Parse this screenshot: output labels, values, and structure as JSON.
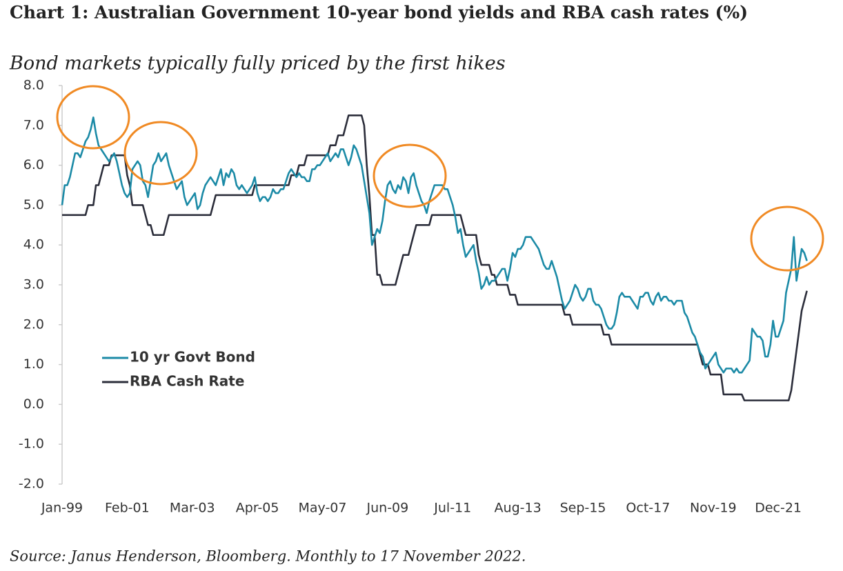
{
  "chart_data": {
    "type": "line",
    "title": "Chart 1: Australian Government 10-year bond yields and RBA cash rates (%)",
    "subtitle": "Bond markets typically fully priced by the first hikes",
    "source": "Source: Janus Henderson, Bloomberg. Monthly to 17 November 2022.",
    "categories": [
      "Jan-99",
      null,
      null,
      null,
      null,
      null,
      null,
      null,
      null,
      null,
      null,
      null,
      null,
      null,
      null,
      null,
      null,
      null,
      null,
      null,
      null,
      null,
      null,
      null,
      null,
      "Feb-01",
      null,
      null,
      null,
      null,
      null,
      null,
      null,
      null,
      null,
      null,
      null,
      null,
      null,
      null,
      null,
      null,
      null,
      null,
      null,
      null,
      null,
      null,
      null,
      null,
      "Mar-03",
      null,
      null,
      null,
      null,
      null,
      null,
      null,
      null,
      null,
      null,
      null,
      null,
      null,
      null,
      null,
      null,
      null,
      null,
      null,
      null,
      null,
      null,
      null,
      null,
      "Apr-05",
      null,
      null,
      null,
      null,
      null,
      null,
      null,
      null,
      null,
      null,
      null,
      null,
      null,
      null,
      null,
      null,
      null,
      null,
      null,
      null,
      null,
      null,
      null,
      null,
      "May-07",
      null,
      null,
      null,
      null,
      null,
      null,
      null,
      null,
      null,
      null,
      null,
      null,
      null,
      null,
      null,
      null,
      null,
      null,
      null,
      null,
      null,
      null,
      null,
      null,
      "Jun-09",
      null,
      null,
      null,
      null,
      null,
      null,
      null,
      null,
      null,
      null,
      null,
      null,
      null,
      null,
      null,
      null,
      null,
      null,
      null,
      null,
      null,
      null,
      null,
      null,
      "Jul-11",
      null,
      null,
      null,
      null,
      null,
      null,
      null,
      null,
      null,
      null,
      null,
      null,
      null,
      null,
      null,
      null,
      null,
      null,
      null,
      null,
      null,
      null,
      null,
      null,
      "Aug-13",
      null,
      null,
      null,
      null,
      null,
      null,
      null,
      null,
      null,
      null,
      null,
      null,
      null,
      null,
      null,
      null,
      null,
      null,
      null,
      null,
      null,
      null,
      null,
      null,
      "Sep-15",
      null,
      null,
      null,
      null,
      null,
      null,
      null,
      null,
      null,
      null,
      null,
      null,
      null,
      null,
      null,
      null,
      null,
      null,
      null,
      null,
      null,
      null,
      null,
      null,
      "Oct-17",
      null,
      null,
      null,
      null,
      null,
      null,
      null,
      null,
      null,
      null,
      null,
      null,
      null,
      null,
      null,
      null,
      null,
      null,
      null,
      null,
      null,
      null,
      null,
      null,
      "Nov-19",
      null,
      null,
      null,
      null,
      null,
      null,
      null,
      null,
      null,
      null,
      null,
      null,
      null,
      null,
      null,
      null,
      null,
      null,
      null,
      null,
      null,
      null,
      null,
      null,
      "Dec-21",
      null,
      null,
      null,
      null,
      null,
      null,
      null,
      null,
      null,
      null,
      null
    ],
    "series": [
      {
        "name": "10 yr Govt Bond",
        "color": "#1b8aa6",
        "values": [
          5.0,
          5.5,
          5.5,
          5.7,
          6.0,
          6.3,
          6.3,
          6.2,
          6.4,
          6.6,
          6.7,
          6.9,
          7.2,
          6.8,
          6.5,
          6.4,
          6.3,
          6.2,
          6.1,
          6.2,
          6.3,
          6.1,
          5.8,
          5.5,
          5.3,
          5.2,
          5.3,
          5.9,
          6.0,
          6.1,
          6.0,
          5.6,
          5.5,
          5.2,
          5.6,
          6.0,
          6.1,
          6.3,
          6.1,
          6.2,
          6.3,
          6.0,
          5.8,
          5.6,
          5.4,
          5.5,
          5.6,
          5.2,
          5.0,
          5.1,
          5.2,
          5.3,
          4.9,
          5.0,
          5.3,
          5.5,
          5.6,
          5.7,
          5.6,
          5.5,
          5.7,
          5.9,
          5.5,
          5.8,
          5.7,
          5.9,
          5.8,
          5.5,
          5.4,
          5.5,
          5.4,
          5.3,
          5.4,
          5.5,
          5.7,
          5.3,
          5.1,
          5.2,
          5.2,
          5.1,
          5.2,
          5.4,
          5.3,
          5.3,
          5.4,
          5.4,
          5.6,
          5.8,
          5.9,
          5.8,
          5.7,
          5.8,
          5.7,
          5.7,
          5.6,
          5.6,
          5.9,
          5.9,
          6.0,
          6.0,
          6.1,
          6.2,
          6.3,
          6.1,
          6.2,
          6.3,
          6.2,
          6.4,
          6.4,
          6.2,
          6.0,
          6.2,
          6.5,
          6.4,
          6.2,
          6.0,
          5.6,
          5.2,
          4.8,
          4.0,
          4.2,
          4.4,
          4.3,
          4.6,
          5.1,
          5.5,
          5.6,
          5.4,
          5.3,
          5.5,
          5.4,
          5.7,
          5.6,
          5.3,
          5.7,
          5.8,
          5.5,
          5.3,
          5.1,
          5.0,
          4.8,
          5.1,
          5.3,
          5.5,
          5.5,
          5.5,
          5.5,
          5.4,
          5.4,
          5.2,
          5.0,
          4.7,
          4.3,
          4.4,
          4.0,
          3.7,
          3.8,
          3.9,
          4.0,
          3.6,
          3.3,
          2.9,
          3.0,
          3.2,
          3.0,
          3.1,
          3.1,
          3.2,
          3.3,
          3.4,
          3.4,
          3.1,
          3.4,
          3.8,
          3.7,
          3.9,
          3.9,
          4.0,
          4.2,
          4.2,
          4.2,
          4.1,
          4.0,
          3.9,
          3.7,
          3.5,
          3.4,
          3.4,
          3.6,
          3.4,
          3.2,
          2.9,
          2.6,
          2.4,
          2.5,
          2.6,
          2.8,
          3.0,
          2.9,
          2.7,
          2.6,
          2.7,
          2.9,
          2.9,
          2.6,
          2.5,
          2.5,
          2.4,
          2.2,
          2.0,
          1.9,
          1.9,
          2.0,
          2.3,
          2.7,
          2.8,
          2.7,
          2.7,
          2.7,
          2.6,
          2.5,
          2.4,
          2.7,
          2.7,
          2.8,
          2.8,
          2.6,
          2.5,
          2.7,
          2.8,
          2.6,
          2.7,
          2.7,
          2.6,
          2.6,
          2.5,
          2.6,
          2.6,
          2.6,
          2.3,
          2.2,
          2.0,
          1.8,
          1.7,
          1.5,
          1.3,
          1.2,
          0.9,
          1.0,
          1.1,
          1.2,
          1.3,
          1.0,
          0.9,
          0.8,
          0.9,
          0.9,
          0.9,
          0.8,
          0.9,
          0.8,
          0.8,
          0.9,
          1.0,
          1.1,
          1.9,
          1.8,
          1.7,
          1.7,
          1.6,
          1.2,
          1.2,
          1.5,
          2.1,
          1.7,
          1.7,
          1.9,
          2.1,
          2.8,
          3.1,
          3.4,
          4.2,
          3.1,
          3.5,
          3.9,
          3.8,
          3.6
        ]
      },
      {
        "name": "RBA Cash Rate",
        "color": "#2b2d3a",
        "values": [
          4.75,
          4.75,
          4.75,
          4.75,
          4.75,
          4.75,
          4.75,
          4.75,
          4.75,
          4.75,
          5.0,
          5.0,
          5.0,
          5.5,
          5.5,
          5.75,
          6.0,
          6.0,
          6.0,
          6.25,
          6.25,
          6.25,
          6.25,
          6.25,
          6.25,
          5.75,
          5.5,
          5.0,
          5.0,
          5.0,
          5.0,
          5.0,
          4.75,
          4.5,
          4.5,
          4.25,
          4.25,
          4.25,
          4.25,
          4.25,
          4.5,
          4.75,
          4.75,
          4.75,
          4.75,
          4.75,
          4.75,
          4.75,
          4.75,
          4.75,
          4.75,
          4.75,
          4.75,
          4.75,
          4.75,
          4.75,
          4.75,
          4.75,
          5.0,
          5.25,
          5.25,
          5.25,
          5.25,
          5.25,
          5.25,
          5.25,
          5.25,
          5.25,
          5.25,
          5.25,
          5.25,
          5.25,
          5.25,
          5.25,
          5.5,
          5.5,
          5.5,
          5.5,
          5.5,
          5.5,
          5.5,
          5.5,
          5.5,
          5.5,
          5.5,
          5.5,
          5.5,
          5.5,
          5.75,
          5.75,
          5.75,
          6.0,
          6.0,
          6.0,
          6.25,
          6.25,
          6.25,
          6.25,
          6.25,
          6.25,
          6.25,
          6.25,
          6.25,
          6.5,
          6.5,
          6.5,
          6.75,
          6.75,
          6.75,
          7.0,
          7.25,
          7.25,
          7.25,
          7.25,
          7.25,
          7.25,
          7.0,
          6.0,
          5.25,
          4.25,
          4.25,
          3.25,
          3.25,
          3.0,
          3.0,
          3.0,
          3.0,
          3.0,
          3.0,
          3.25,
          3.5,
          3.75,
          3.75,
          3.75,
          4.0,
          4.25,
          4.5,
          4.5,
          4.5,
          4.5,
          4.5,
          4.5,
          4.75,
          4.75,
          4.75,
          4.75,
          4.75,
          4.75,
          4.75,
          4.75,
          4.75,
          4.75,
          4.75,
          4.75,
          4.5,
          4.25,
          4.25,
          4.25,
          4.25,
          4.25,
          3.75,
          3.5,
          3.5,
          3.5,
          3.5,
          3.25,
          3.25,
          3.0,
          3.0,
          3.0,
          3.0,
          3.0,
          2.75,
          2.75,
          2.75,
          2.5,
          2.5,
          2.5,
          2.5,
          2.5,
          2.5,
          2.5,
          2.5,
          2.5,
          2.5,
          2.5,
          2.5,
          2.5,
          2.5,
          2.5,
          2.5,
          2.5,
          2.5,
          2.25,
          2.25,
          2.25,
          2.0,
          2.0,
          2.0,
          2.0,
          2.0,
          2.0,
          2.0,
          2.0,
          2.0,
          2.0,
          2.0,
          2.0,
          1.75,
          1.75,
          1.75,
          1.5,
          1.5,
          1.5,
          1.5,
          1.5,
          1.5,
          1.5,
          1.5,
          1.5,
          1.5,
          1.5,
          1.5,
          1.5,
          1.5,
          1.5,
          1.5,
          1.5,
          1.5,
          1.5,
          1.5,
          1.5,
          1.5,
          1.5,
          1.5,
          1.5,
          1.5,
          1.5,
          1.5,
          1.5,
          1.5,
          1.5,
          1.5,
          1.5,
          1.5,
          1.25,
          1.0,
          1.0,
          1.0,
          0.75,
          0.75,
          0.75,
          0.75,
          0.75,
          0.25,
          0.25,
          0.25,
          0.25,
          0.25,
          0.25,
          0.25,
          0.25,
          0.1,
          0.1,
          0.1,
          0.1,
          0.1,
          0.1,
          0.1,
          0.1,
          0.1,
          0.1,
          0.1,
          0.1,
          0.1,
          0.1,
          0.1,
          0.1,
          0.1,
          0.1,
          0.35,
          0.85,
          1.35,
          1.85,
          2.35,
          2.6,
          2.85
        ]
      }
    ],
    "ylim": [
      -2,
      8
    ],
    "yticks": [
      {
        "value": -2,
        "label": "-2.0"
      },
      {
        "value": -1,
        "label": "-1.0"
      },
      {
        "value": 0,
        "label": "0.0"
      },
      {
        "value": 1,
        "label": "1.0"
      },
      {
        "value": 2,
        "label": "2.0"
      },
      {
        "value": 3,
        "label": "3.0"
      },
      {
        "value": 4,
        "label": "4.0"
      },
      {
        "value": 5,
        "label": "5.0"
      },
      {
        "value": 6,
        "label": "6.0"
      },
      {
        "value": 7,
        "label": "7.0"
      },
      {
        "value": 8,
        "label": "8.0"
      }
    ],
    "grid": false,
    "legend": "left"
  }
}
